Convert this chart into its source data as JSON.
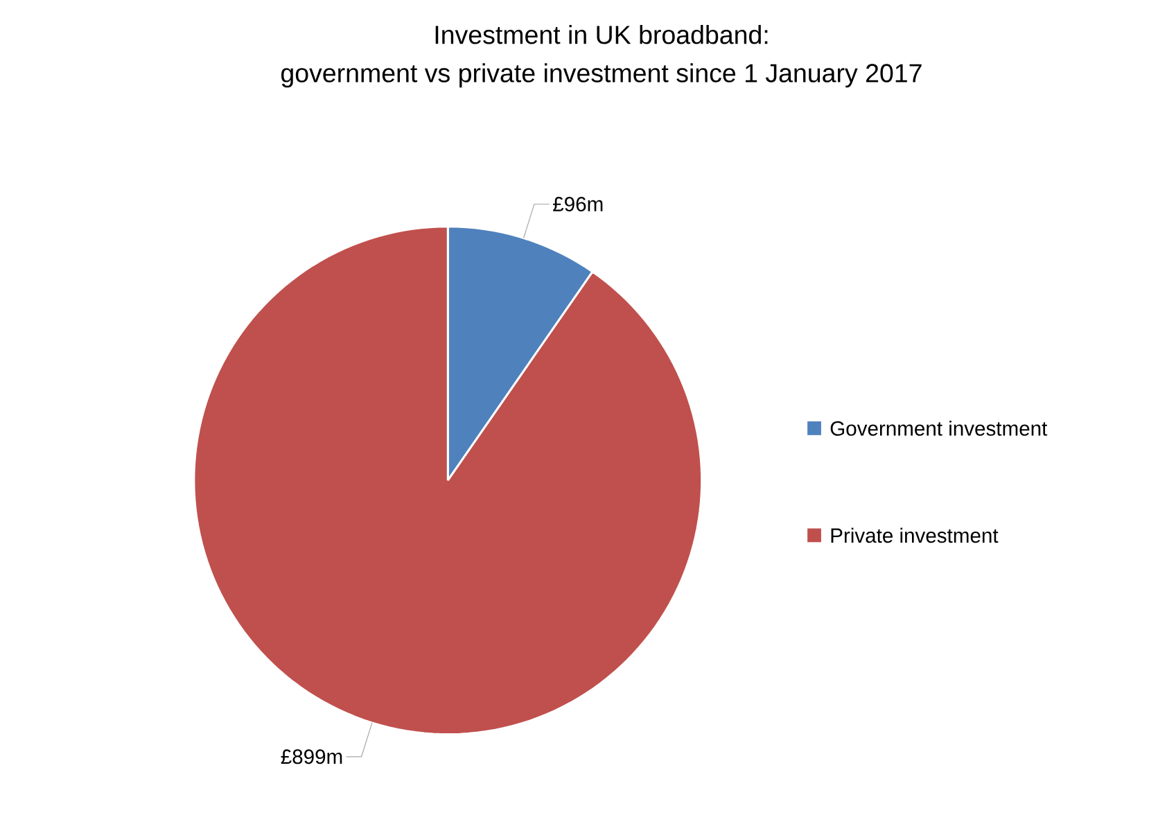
{
  "chart_data": {
    "type": "pie",
    "title": "Investment in UK broadband:\ngovernment vs private investment since 1 January 2017",
    "categories": [
      "Government investment",
      "Private investment"
    ],
    "values": [
      96,
      899
    ],
    "value_labels": [
      "£96m",
      "£899m"
    ],
    "colors": [
      "#4f81bd",
      "#c0504d"
    ],
    "legend": "right"
  }
}
